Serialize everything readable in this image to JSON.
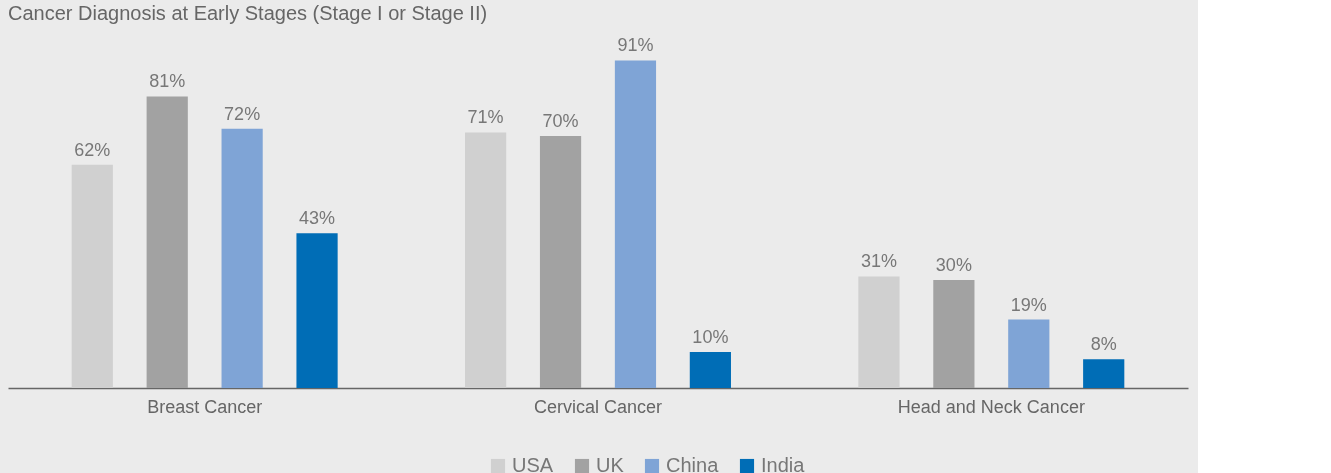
{
  "chart_data": {
    "type": "bar",
    "title": "Cancer Diagnosis at Early Stages (Stage I or Stage II)",
    "categories": [
      "Breast Cancer",
      "Cervical Cancer",
      "Head and Neck Cancer"
    ],
    "series": [
      {
        "name": "USA",
        "color": "#d0d0d0",
        "values": [
          62,
          71,
          31
        ],
        "value_labels": [
          "62%",
          "71%",
          "31%"
        ]
      },
      {
        "name": "UK",
        "color": "#a2a2a2",
        "values": [
          81,
          70,
          30
        ],
        "value_labels": [
          "81%",
          "70%",
          "30%"
        ]
      },
      {
        "name": "China",
        "color": "#7fa4d6",
        "values": [
          72,
          91,
          19
        ],
        "value_labels": [
          "72%",
          "91%",
          "19%"
        ]
      },
      {
        "name": "India",
        "color": "#006db6",
        "values": [
          43,
          10,
          8
        ],
        "value_labels": [
          "43%",
          "10%",
          "8%"
        ]
      }
    ],
    "legend": "bottom",
    "grid": false
  }
}
